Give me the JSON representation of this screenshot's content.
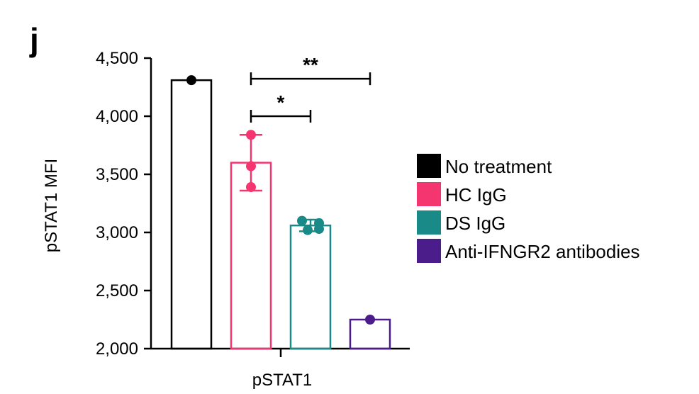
{
  "panel_label": "j",
  "chart_data": {
    "type": "bar",
    "categories": [
      "pSTAT1"
    ],
    "xlabel": "pSTAT1",
    "ylabel": "pSTAT1 MFI",
    "ylim": [
      2000,
      4500
    ],
    "yticks": [
      2000,
      2500,
      3000,
      3500,
      4000,
      4500
    ],
    "ytick_labels": [
      "2,000",
      "2,500",
      "3,000",
      "3,500",
      "4,000",
      "4,500"
    ],
    "grid": false,
    "legend_position": "right",
    "series": [
      {
        "name": "No treatment",
        "color": "#000000",
        "value": 4310,
        "error": 0,
        "points": [
          4310
        ]
      },
      {
        "name": "HC IgG",
        "color": "#f5356f",
        "value": 3600,
        "error": 240,
        "points": [
          3840,
          3570,
          3390
        ]
      },
      {
        "name": "DS IgG",
        "color": "#1a8a88",
        "value": 3060,
        "error": 50,
        "points": [
          3100,
          3080,
          3020,
          3030
        ]
      },
      {
        "name": "Anti-IFNGR2 antibodies",
        "color": "#4b1d8a",
        "value": 2250,
        "error": 0,
        "points": [
          2250
        ]
      }
    ],
    "annotations": [
      {
        "from": "HC IgG",
        "to": "DS IgG",
        "label": "*",
        "y": 4000
      },
      {
        "from": "HC IgG",
        "to": "Anti-IFNGR2 antibodies",
        "label": "**",
        "y": 4310
      }
    ]
  }
}
